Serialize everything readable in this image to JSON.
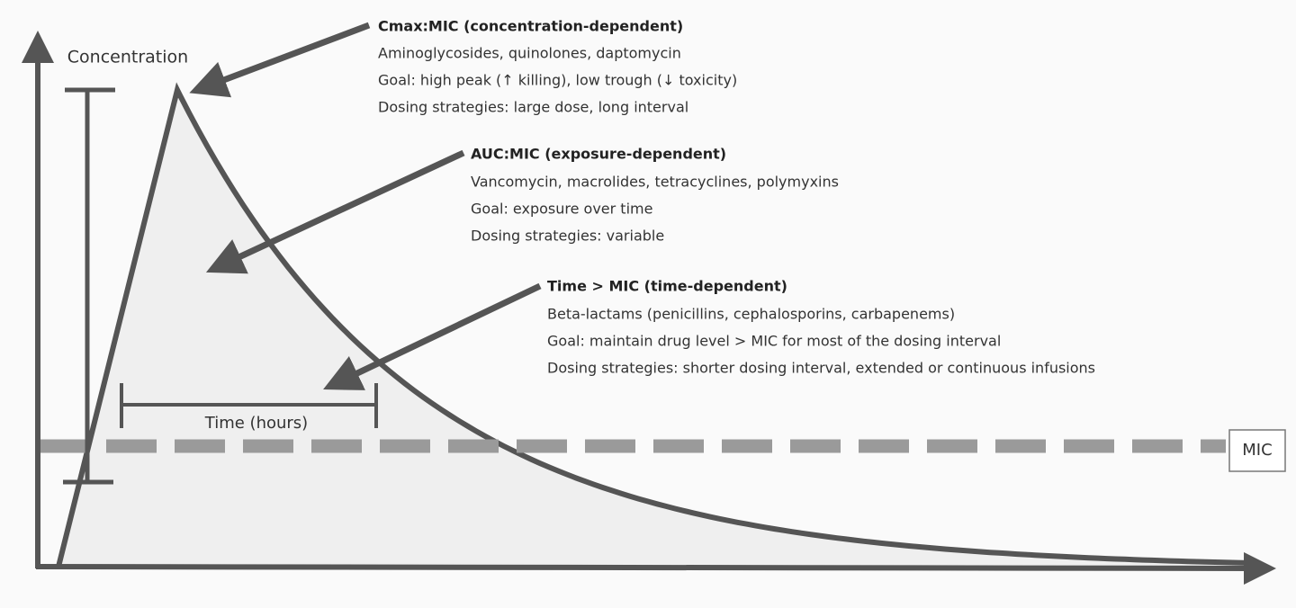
{
  "axes": {
    "y_label": "Concentration",
    "x_label": "Time (hours)"
  },
  "threshold_label": "MIC",
  "annotations": [
    {
      "title": "Cmax:MIC (concentration-dependent)",
      "lines": [
        "Aminoglycosides, quinolones, daptomycin",
        "Goal: high peak (↑ killing), low trough (↓ toxicity)",
        "Dosing strategies: large dose, long interval"
      ]
    },
    {
      "title": "AUC:MIC (exposure-dependent)",
      "lines": [
        "Vancomycin, macrolides, tetracyclines, polymyxins",
        "Goal: exposure over time",
        "Dosing strategies: variable"
      ]
    },
    {
      "title": "Time > MIC (time-dependent)",
      "lines": [
        "Beta-lactams (penicillins, cephalosporins, carbapenems)",
        "Goal: maintain drug level > MIC for most of the dosing interval",
        "Dosing strategies: shorter dosing interval, extended or continuous infusions"
      ]
    }
  ]
}
